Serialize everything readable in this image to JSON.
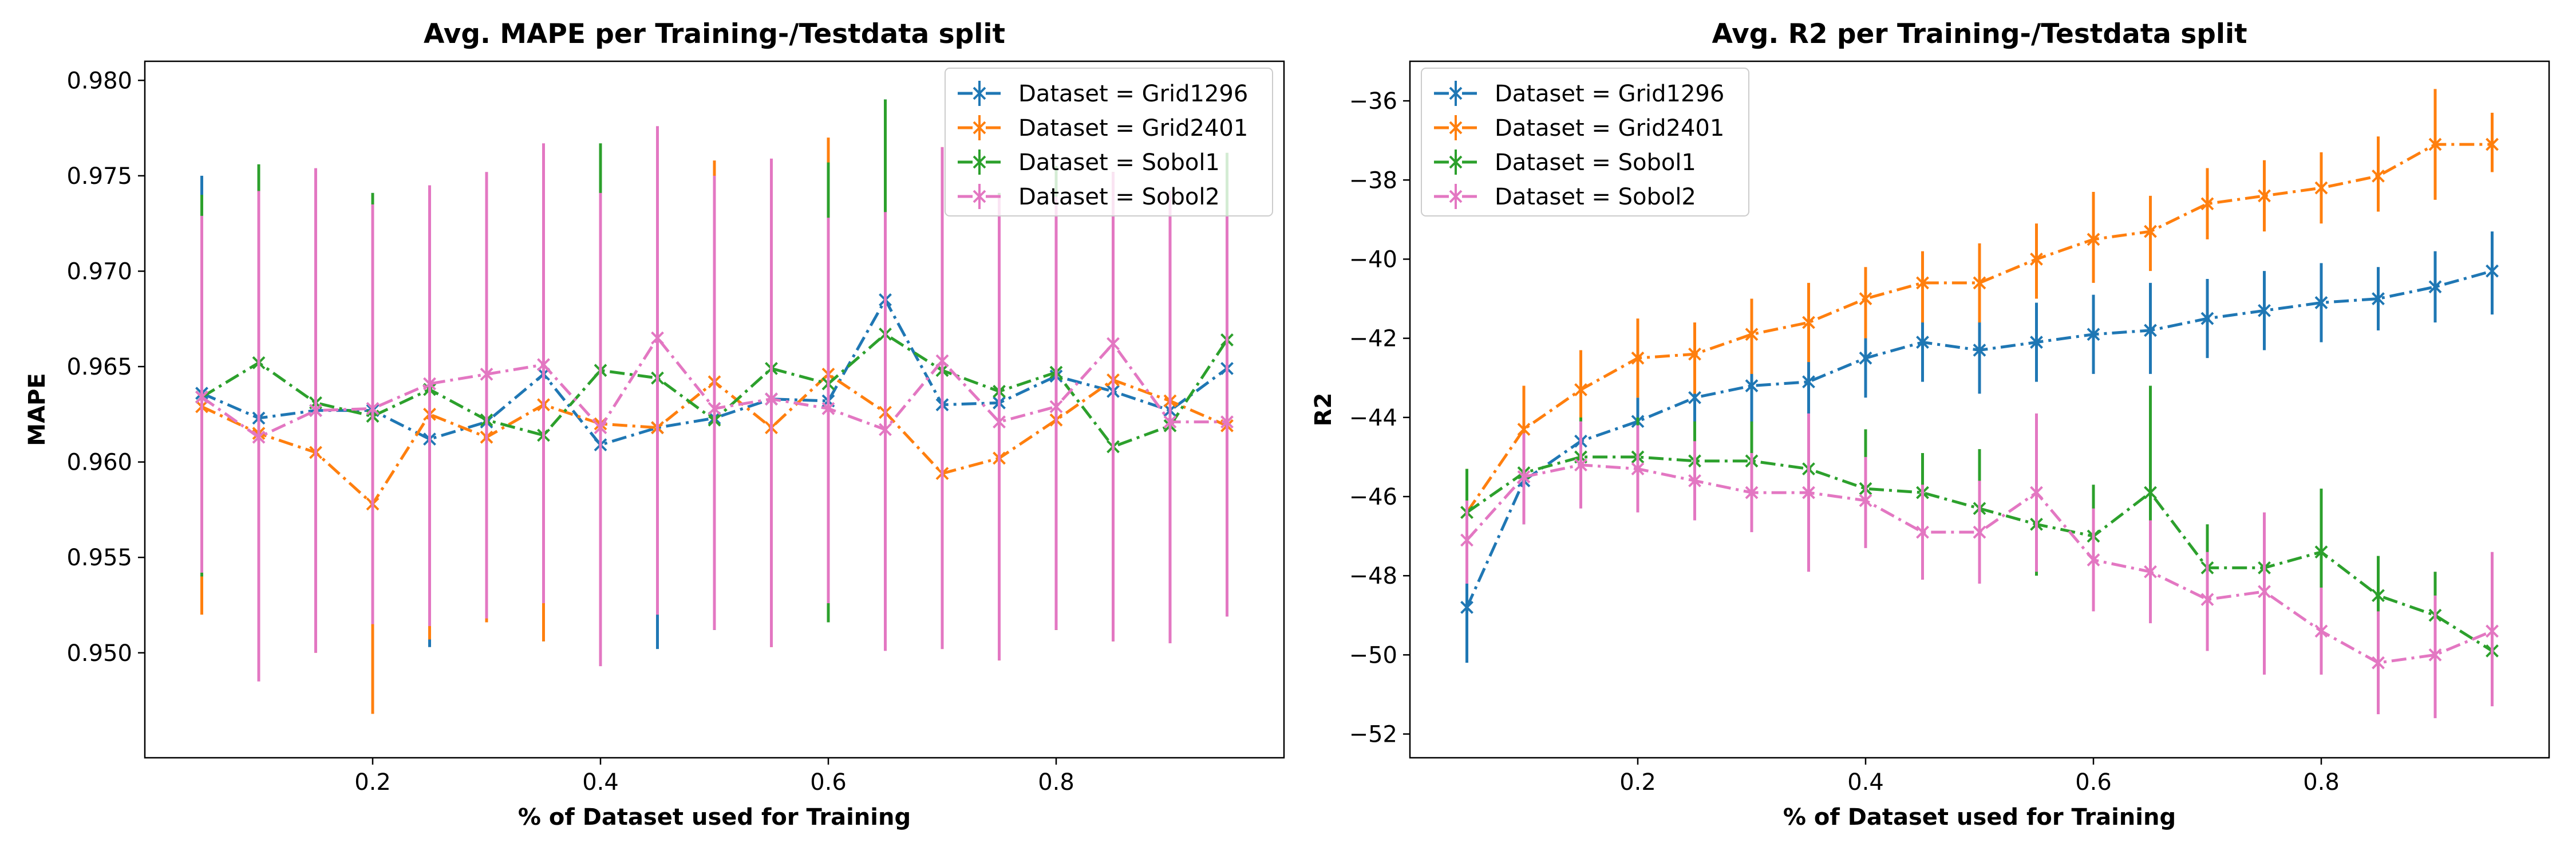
{
  "chart_data": [
    {
      "type": "line",
      "title": "Avg. MAPE per Training-/Testdata split",
      "xlabel": "% of Dataset used for Training",
      "ylabel": "MAPE",
      "xlim": [
        0.0,
        1.0
      ],
      "ylim": [
        0.9445,
        0.981
      ],
      "xticks": [
        0.2,
        0.4,
        0.6,
        0.8
      ],
      "xtick_labels": [
        "0.2",
        "0.4",
        "0.6",
        "0.8"
      ],
      "yticks": [
        0.95,
        0.955,
        0.96,
        0.965,
        0.97,
        0.975,
        0.98
      ],
      "ytick_labels": [
        "0.950",
        "0.955",
        "0.960",
        "0.965",
        "0.970",
        "0.975",
        "0.980"
      ],
      "legend_position": "top-right",
      "grid": false,
      "x": [
        0.05,
        0.1,
        0.15,
        0.2,
        0.25,
        0.3,
        0.35,
        0.4,
        0.45,
        0.5,
        0.55,
        0.6,
        0.65,
        0.7,
        0.75,
        0.8,
        0.85,
        0.9,
        0.95
      ],
      "series": [
        {
          "name": "Dataset = Grid1296",
          "color": "#1f77b4",
          "values": [
            0.9636,
            0.9623,
            0.9627,
            0.9627,
            0.9612,
            0.9621,
            0.9646,
            0.9609,
            0.9618,
            0.9623,
            0.9633,
            0.9632,
            0.9685,
            0.963,
            0.9631,
            0.9645,
            0.9637,
            0.9627,
            0.9649
          ],
          "err_low": [
            0.9537,
            0.9498,
            0.9511,
            0.9518,
            0.9503,
            0.9516,
            0.9506,
            0.9501,
            0.9502,
            0.9512,
            0.9506,
            0.9516,
            0.9578,
            0.9515,
            0.9515,
            0.9512,
            0.9506,
            0.9508,
            0.9521
          ],
          "err_high": [
            0.975,
            0.9741,
            0.9741,
            0.9741,
            0.9742,
            0.9742,
            0.9752,
            0.9712,
            0.9731,
            0.9742,
            0.9755,
            0.975,
            0.979,
            0.9751,
            0.9741,
            0.9755,
            0.9752,
            0.9742,
            0.9762
          ]
        },
        {
          "name": "Dataset = Grid2401",
          "color": "#ff7f0e",
          "values": [
            0.9629,
            0.9615,
            0.9605,
            0.9578,
            0.9625,
            0.9613,
            0.963,
            0.962,
            0.9618,
            0.9642,
            0.9618,
            0.9646,
            0.9626,
            0.9594,
            0.9602,
            0.9622,
            0.9643,
            0.9632,
            0.9619
          ],
          "err_low": [
            0.952,
            0.9498,
            0.95,
            0.9468,
            0.9507,
            0.9516,
            0.9506,
            0.9501,
            0.952,
            0.9521,
            0.9503,
            0.9526,
            0.9518,
            0.9502,
            0.9496,
            0.9512,
            0.9506,
            0.9508,
            0.9521
          ],
          "err_high": [
            0.9738,
            0.974,
            0.9742,
            0.9735,
            0.9742,
            0.9742,
            0.9752,
            0.9741,
            0.9739,
            0.9758,
            0.9755,
            0.977,
            0.9765,
            0.9765,
            0.974,
            0.9755,
            0.9752,
            0.9742,
            0.9762
          ]
        },
        {
          "name": "Dataset = Sobol1",
          "color": "#2ca02c",
          "values": [
            0.9634,
            0.9652,
            0.9631,
            0.9624,
            0.9638,
            0.9622,
            0.9614,
            0.9648,
            0.9644,
            0.9622,
            0.9649,
            0.9641,
            0.9667,
            0.9648,
            0.9637,
            0.9647,
            0.9608,
            0.9619,
            0.9664
          ],
          "err_low": [
            0.954,
            0.9498,
            0.9511,
            0.9521,
            0.9536,
            0.954,
            0.9535,
            0.9501,
            0.9555,
            0.9512,
            0.9506,
            0.9516,
            0.9578,
            0.9515,
            0.9515,
            0.9512,
            0.9545,
            0.9508,
            0.9521
          ],
          "err_high": [
            0.974,
            0.9756,
            0.9741,
            0.9741,
            0.9742,
            0.9742,
            0.9752,
            0.9767,
            0.9764,
            0.9742,
            0.9755,
            0.9757,
            0.979,
            0.9751,
            0.9741,
            0.9755,
            0.9752,
            0.9742,
            0.9762
          ]
        },
        {
          "name": "Dataset = Sobol2",
          "color": "#e377c2",
          "values": [
            0.9634,
            0.9613,
            0.9627,
            0.9628,
            0.9641,
            0.9646,
            0.9651,
            0.9618,
            0.9665,
            0.9628,
            0.9633,
            0.9628,
            0.9617,
            0.9653,
            0.9621,
            0.9629,
            0.9662,
            0.9621,
            0.9621
          ],
          "err_low": [
            0.9542,
            0.9485,
            0.95,
            0.9515,
            0.9514,
            0.9518,
            0.9526,
            0.9493,
            0.952,
            0.9512,
            0.9503,
            0.9526,
            0.9501,
            0.9502,
            0.9496,
            0.9512,
            0.9506,
            0.9505,
            0.9519
          ],
          "err_high": [
            0.9729,
            0.9742,
            0.9754,
            0.9735,
            0.9745,
            0.9752,
            0.9767,
            0.9741,
            0.9776,
            0.975,
            0.9759,
            0.9728,
            0.9731,
            0.9765,
            0.974,
            0.9739,
            0.9752,
            0.9742,
            0.9729
          ]
        }
      ]
    },
    {
      "type": "line",
      "title": "Avg. R2 per Training-/Testdata split",
      "xlabel": "% of Dataset used for Training",
      "ylabel": "R2",
      "xlim": [
        0.0,
        1.0
      ],
      "ylim": [
        -52.6,
        -35.0
      ],
      "xticks": [
        0.2,
        0.4,
        0.6,
        0.8
      ],
      "xtick_labels": [
        "0.2",
        "0.4",
        "0.6",
        "0.8"
      ],
      "yticks": [
        -52,
        -50,
        -48,
        -46,
        -44,
        -42,
        -40,
        -38,
        -36
      ],
      "ytick_labels": [
        "−52",
        "−50",
        "−48",
        "−46",
        "−44",
        "−42",
        "−40",
        "−38",
        "−36"
      ],
      "legend_position": "top-left",
      "grid": false,
      "x": [
        0.05,
        0.1,
        0.15,
        0.2,
        0.25,
        0.3,
        0.35,
        0.4,
        0.45,
        0.5,
        0.55,
        0.6,
        0.65,
        0.7,
        0.75,
        0.8,
        0.85,
        0.9,
        0.95
      ],
      "series": [
        {
          "name": "Dataset = Grid1296",
          "color": "#1f77b4",
          "values": [
            -48.8,
            -45.6,
            -44.6,
            -44.1,
            -43.5,
            -43.2,
            -43.1,
            -42.5,
            -42.1,
            -42.3,
            -42.1,
            -41.9,
            -41.8,
            -41.5,
            -41.3,
            -41.1,
            -41.0,
            -40.7,
            -40.3
          ],
          "err_low": [
            -50.2,
            -46.7,
            -45.6,
            -45.1,
            -44.5,
            -44.2,
            -44.1,
            -43.5,
            -43.1,
            -43.4,
            -43.1,
            -42.9,
            -42.9,
            -42.5,
            -42.3,
            -42.1,
            -41.8,
            -41.6,
            -41.4
          ],
          "err_high": [
            -48.2,
            -44.6,
            -43.6,
            -43.5,
            -42.5,
            -42.2,
            -42.1,
            -41.5,
            -41.1,
            -41.2,
            -41.1,
            -40.9,
            -40.6,
            -40.5,
            -40.3,
            -40.1,
            -40.2,
            -39.8,
            -39.3
          ]
        },
        {
          "name": "Dataset = Grid2401",
          "color": "#ff7f0e",
          "values": [
            -46.4,
            -44.3,
            -43.3,
            -42.5,
            -42.4,
            -41.9,
            -41.6,
            -41.0,
            -40.6,
            -40.6,
            -40.0,
            -39.5,
            -39.3,
            -38.6,
            -38.4,
            -38.2,
            -37.9,
            -37.1,
            -37.1
          ],
          "err_low": [
            -47.5,
            -45.4,
            -44.4,
            -43.5,
            -43.4,
            -42.9,
            -42.6,
            -42.0,
            -41.6,
            -41.6,
            -41.0,
            -40.6,
            -40.3,
            -39.5,
            -39.3,
            -39.1,
            -38.8,
            -38.5,
            -37.8
          ],
          "err_high": [
            -45.3,
            -43.2,
            -42.3,
            -41.5,
            -41.6,
            -41.0,
            -40.6,
            -40.2,
            -39.8,
            -39.6,
            -39.1,
            -38.3,
            -38.4,
            -37.7,
            -37.5,
            -37.3,
            -36.9,
            -35.7,
            -36.3
          ]
        },
        {
          "name": "Dataset = Sobol1",
          "color": "#2ca02c",
          "values": [
            -46.4,
            -45.4,
            -45.0,
            -45.0,
            -45.1,
            -45.1,
            -45.3,
            -45.8,
            -45.9,
            -46.3,
            -46.7,
            -47.0,
            -45.9,
            -47.8,
            -47.8,
            -47.4,
            -48.5,
            -49.0,
            -49.9
          ],
          "err_low": [
            -47.5,
            -46.7,
            -46.1,
            -46.1,
            -46.1,
            -46.1,
            -47.6,
            -46.8,
            -46.9,
            -47.4,
            -48.0,
            -48.2,
            -47.1,
            -48.8,
            -48.8,
            -48.5,
            -49.6,
            -50.0,
            -51.0
          ],
          "err_high": [
            -45.3,
            -44.4,
            -44.0,
            -44.0,
            -44.1,
            -44.1,
            -44.1,
            -44.3,
            -44.9,
            -44.8,
            -45.6,
            -45.7,
            -43.2,
            -46.7,
            -46.7,
            -45.8,
            -47.5,
            -47.9,
            -48.9
          ]
        },
        {
          "name": "Dataset = Sobol2",
          "color": "#e377c2",
          "values": [
            -47.1,
            -45.5,
            -45.2,
            -45.3,
            -45.6,
            -45.9,
            -45.9,
            -46.1,
            -46.9,
            -46.9,
            -45.9,
            -47.6,
            -47.9,
            -48.6,
            -48.4,
            -49.4,
            -50.2,
            -50.0,
            -49.4
          ],
          "err_low": [
            -48.2,
            -46.7,
            -46.3,
            -46.4,
            -46.6,
            -46.9,
            -47.9,
            -47.3,
            -48.1,
            -48.2,
            -47.9,
            -48.9,
            -49.2,
            -49.9,
            -50.5,
            -50.5,
            -51.5,
            -51.6,
            -51.3
          ],
          "err_high": [
            -46.1,
            -44.4,
            -44.1,
            -44.2,
            -44.6,
            -44.9,
            -43.9,
            -45.0,
            -45.7,
            -45.6,
            -43.9,
            -46.3,
            -46.6,
            -47.4,
            -46.4,
            -48.3,
            -48.9,
            -48.5,
            -47.4
          ]
        }
      ]
    }
  ]
}
